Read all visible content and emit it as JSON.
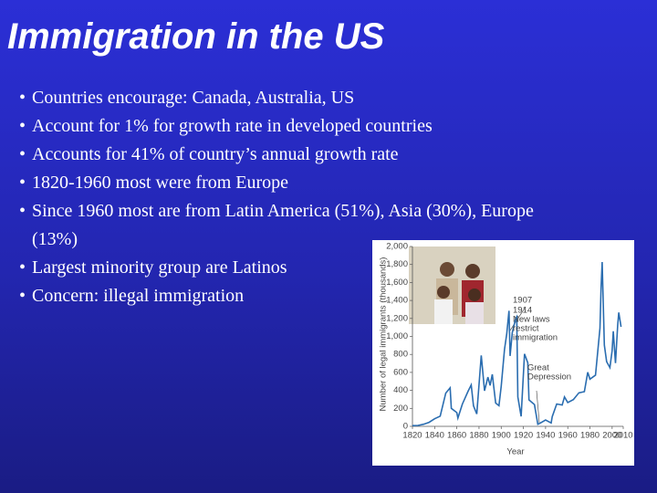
{
  "title": "Immigration in the US",
  "bullets": [
    "Countries encourage: Canada, Australia, US",
    "Account for 1% for growth rate in developed countries",
    "Accounts for 41% of country’s annual growth rate",
    "1820-1960 most were from Europe",
    "Since 1960 most are from Latin America (51%), Asia (30%), Europe (13%)",
    "Largest minority group are Latinos",
    "Concern: illegal immigration"
  ],
  "chart_data": {
    "type": "line",
    "y_label": "Number of legal immigrants (thousands)",
    "x_label": "Year",
    "annotations": [
      "1907",
      "1914",
      "New laws",
      "restrict",
      "immigration",
      "Great",
      "Depression"
    ],
    "x": [
      1820,
      1825,
      1830,
      1835,
      1840,
      1845,
      1850,
      1854,
      1855,
      1860,
      1861,
      1865,
      1870,
      1873,
      1875,
      1878,
      1880,
      1882,
      1885,
      1888,
      1890,
      1892,
      1895,
      1898,
      1900,
      1903,
      1905,
      1907,
      1908,
      1910,
      1913,
      1914,
      1915,
      1918,
      1921,
      1924,
      1925,
      1930,
      1933,
      1935,
      1940,
      1945,
      1946,
      1950,
      1955,
      1957,
      1960,
      1965,
      1970,
      1975,
      1978,
      1980,
      1985,
      1989,
      1990,
      1991,
      1993,
      1995,
      1998,
      2000,
      2001,
      2003,
      2005,
      2006,
      2008
    ],
    "series": [
      {
        "color": "#2a6db0",
        "values": [
          8,
          10,
          23,
          45,
          84,
          114,
          370,
          428,
          200,
          153,
          92,
          248,
          387,
          460,
          227,
          138,
          457,
          789,
          395,
          547,
          455,
          579,
          259,
          229,
          449,
          857,
          1026,
          1285,
          783,
          1042,
          1198,
          1218,
          327,
          111,
          805,
          707,
          294,
          242,
          23,
          35,
          71,
          38,
          109,
          249,
          238,
          327,
          265,
          297,
          373,
          386,
          601,
          525,
          570,
          1091,
          1536,
          1827,
          904,
          720,
          654,
          841,
          1058,
          704,
          1122,
          1266,
          1107
        ]
      }
    ],
    "xlim": [
      1820,
      2010
    ],
    "ylim": [
      0,
      2000
    ],
    "xticks": [
      1820,
      1840,
      1860,
      1880,
      1900,
      1920,
      1940,
      1960,
      1980,
      2000,
      2010
    ],
    "yticks": [
      0,
      200,
      400,
      600,
      800,
      {
        "value": 1000,
        "label": "1,000"
      },
      {
        "value": 1200,
        "label": "1,200"
      },
      {
        "value": 1400,
        "label": "1,400"
      },
      {
        "value": 1600,
        "label": "1,600"
      },
      {
        "value": 1800,
        "label": "1,800"
      },
      {
        "value": 2000,
        "label": "2,000"
      }
    ]
  }
}
